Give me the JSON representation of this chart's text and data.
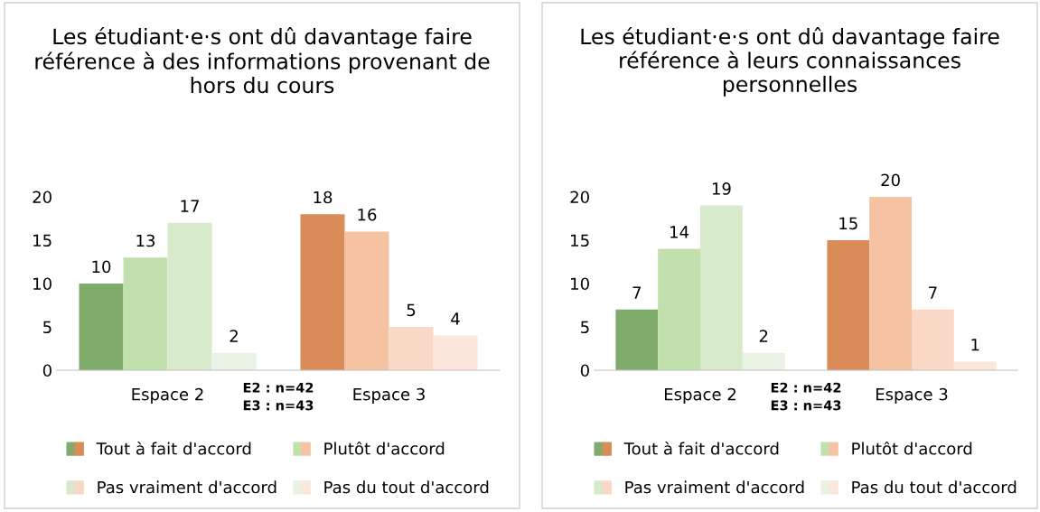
{
  "chart_data": [
    {
      "type": "bar",
      "title": "Les étudiant·e·s ont dû davantage faire référence à des informations provenant de hors du cours",
      "categories": [
        "Espace 2",
        "Espace 3"
      ],
      "ylim": [
        0,
        20
      ],
      "yticks": [
        0,
        5,
        10,
        15,
        20
      ],
      "data_labels": true,
      "legend": "bottom",
      "grid": false,
      "annotations": [
        "E2 : n=42\nE3 : n=43"
      ],
      "series": [
        {
          "name": "Tout à fait d'accord",
          "colors": [
            "#7fab6b",
            "#d98b58"
          ],
          "values": [
            10,
            18
          ]
        },
        {
          "name": "Plutôt d'accord",
          "colors": [
            "#c2dfae",
            "#f5c3a1"
          ],
          "values": [
            13,
            16
          ]
        },
        {
          "name": "Pas vraiment d'accord",
          "colors": [
            "#d7eacb",
            "#f9d9c6"
          ],
          "values": [
            17,
            5
          ]
        },
        {
          "name": "Pas du tout d'accord",
          "colors": [
            "#e9f3e3",
            "#fbe7dc"
          ],
          "values": [
            2,
            4
          ]
        }
      ]
    },
    {
      "type": "bar",
      "title": "Les étudiant·e·s ont dû davantage faire référence à leurs connaissances personnelles",
      "categories": [
        "Espace 2",
        "Espace 3"
      ],
      "ylim": [
        0,
        20
      ],
      "yticks": [
        0,
        5,
        10,
        15,
        20
      ],
      "data_labels": true,
      "legend": "bottom",
      "grid": false,
      "annotations": [
        "E2 : n=42\nE3 : n=43"
      ],
      "series": [
        {
          "name": "Tout à fait d'accord",
          "colors": [
            "#7fab6b",
            "#d98b58"
          ],
          "values": [
            7,
            15
          ]
        },
        {
          "name": "Plutôt d'accord",
          "colors": [
            "#c2dfae",
            "#f5c3a1"
          ],
          "values": [
            14,
            20
          ]
        },
        {
          "name": "Pas vraiment d'accord",
          "colors": [
            "#d7eacb",
            "#f9d9c6"
          ],
          "values": [
            19,
            7
          ]
        },
        {
          "name": "Pas du tout d'accord",
          "colors": [
            "#e9f3e3",
            "#fbe7dc"
          ],
          "values": [
            2,
            1
          ]
        }
      ]
    }
  ]
}
